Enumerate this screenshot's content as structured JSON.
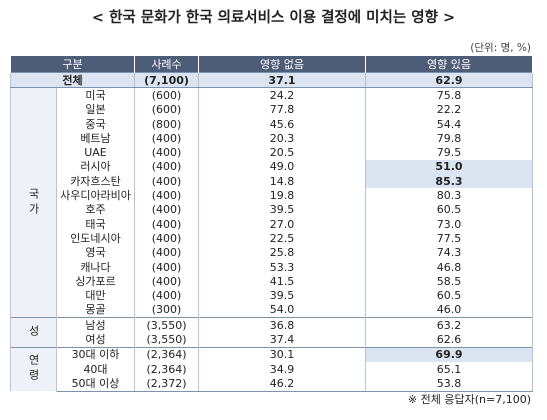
{
  "title": "< 한국 문화가 한국 의료서비스 이용 결정에 미치는 영향 >",
  "unit": "(단위: 명, %)",
  "table": {
    "header": [
      "구분",
      "사례수",
      "영향 없음",
      "영향 있음"
    ],
    "total": [
      "전체",
      "(7,100)",
      "37.1",
      "62.9"
    ],
    "groups": [
      {
        "label": "국가",
        "rows": [
          {
            "cells": [
              "미국",
              "(600)",
              "24.2",
              "75.8"
            ]
          },
          {
            "cells": [
              "일본",
              "(600)",
              "77.8",
              "22.2"
            ]
          },
          {
            "cells": [
              "중국",
              "(800)",
              "45.6",
              "54.4"
            ]
          },
          {
            "cells": [
              "베트남",
              "(400)",
              "20.3",
              "79.8"
            ]
          },
          {
            "cells": [
              "UAE",
              "(400)",
              "20.5",
              "79.5"
            ]
          },
          {
            "cells": [
              "러시아",
              "(400)",
              "49.0",
              "51.0"
            ],
            "highlight": true
          },
          {
            "cells": [
              "카자흐스탄",
              "(400)",
              "14.8",
              "85.3"
            ],
            "highlight": true
          },
          {
            "cells": [
              "사우디아라비아",
              "(400)",
              "19.8",
              "80.3"
            ]
          },
          {
            "cells": [
              "호주",
              "(400)",
              "39.5",
              "60.5"
            ]
          },
          {
            "cells": [
              "태국",
              "(400)",
              "27.0",
              "73.0"
            ]
          },
          {
            "cells": [
              "인도네시아",
              "(400)",
              "22.5",
              "77.5"
            ]
          },
          {
            "cells": [
              "영국",
              "(400)",
              "25.8",
              "74.3"
            ]
          },
          {
            "cells": [
              "캐나다",
              "(400)",
              "53.3",
              "46.8"
            ]
          },
          {
            "cells": [
              "싱가포르",
              "(400)",
              "41.5",
              "58.5"
            ]
          },
          {
            "cells": [
              "대만",
              "(400)",
              "39.5",
              "60.5"
            ]
          },
          {
            "cells": [
              "몽골",
              "(300)",
              "54.0",
              "46.0"
            ]
          }
        ]
      },
      {
        "label": "성",
        "rows": [
          {
            "cells": [
              "남성",
              "(3,550)",
              "36.8",
              "63.2"
            ]
          },
          {
            "cells": [
              "여성",
              "(3,550)",
              "37.4",
              "62.6"
            ]
          }
        ]
      },
      {
        "label": "연령",
        "rows": [
          {
            "cells": [
              "30대 이하",
              "(2,364)",
              "30.1",
              "69.9"
            ],
            "highlight": true
          },
          {
            "cells": [
              "40대",
              "(2,364)",
              "34.9",
              "65.1"
            ]
          },
          {
            "cells": [
              "50대 이상",
              "(2,372)",
              "46.2",
              "53.8"
            ]
          }
        ]
      }
    ]
  },
  "footnote": "※ 전체 응답자(n=7,100)"
}
